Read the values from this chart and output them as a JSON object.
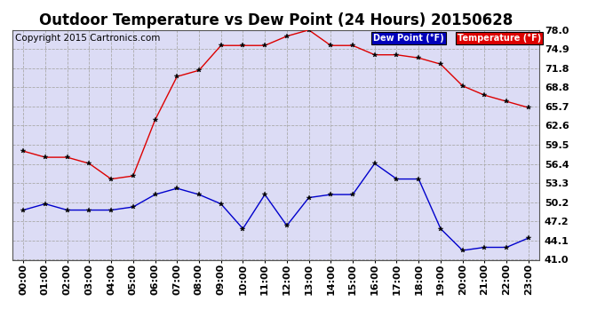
{
  "title": "Outdoor Temperature vs Dew Point (24 Hours) 20150628",
  "copyright": "Copyright 2015 Cartronics.com",
  "legend_dew": "Dew Point (°F)",
  "legend_temp": "Temperature (°F)",
  "hours": [
    "00:00",
    "01:00",
    "02:00",
    "03:00",
    "04:00",
    "05:00",
    "06:00",
    "07:00",
    "08:00",
    "09:00",
    "10:00",
    "11:00",
    "12:00",
    "13:00",
    "14:00",
    "15:00",
    "16:00",
    "17:00",
    "18:00",
    "19:00",
    "20:00",
    "21:00",
    "22:00",
    "23:00"
  ],
  "temperature": [
    58.5,
    57.5,
    57.5,
    56.5,
    54.0,
    54.5,
    63.5,
    70.5,
    71.5,
    75.5,
    75.5,
    75.5,
    77.0,
    78.0,
    75.5,
    75.5,
    74.0,
    74.0,
    73.5,
    72.5,
    69.0,
    67.5,
    66.5,
    65.5
  ],
  "dew_point": [
    49.0,
    50.0,
    49.0,
    49.0,
    49.0,
    49.5,
    51.5,
    52.5,
    51.5,
    50.0,
    46.0,
    51.5,
    46.5,
    51.0,
    51.5,
    51.5,
    56.5,
    54.0,
    54.0,
    46.0,
    42.5,
    43.0,
    43.0,
    44.5
  ],
  "ylim_min": 41.0,
  "ylim_max": 78.0,
  "yticks": [
    41.0,
    44.1,
    47.2,
    50.2,
    53.3,
    56.4,
    59.5,
    62.6,
    65.7,
    68.8,
    71.8,
    74.9,
    78.0
  ],
  "bg_color": "#ffffff",
  "plot_bg_color": "#dcdcf5",
  "grid_color": "#aaaaaa",
  "temp_color": "#dd0000",
  "dew_color": "#0000cc",
  "legend_dew_bg": "#0000bb",
  "legend_temp_bg": "#dd0000",
  "title_fontsize": 12,
  "tick_fontsize": 8,
  "copyright_fontsize": 7.5
}
